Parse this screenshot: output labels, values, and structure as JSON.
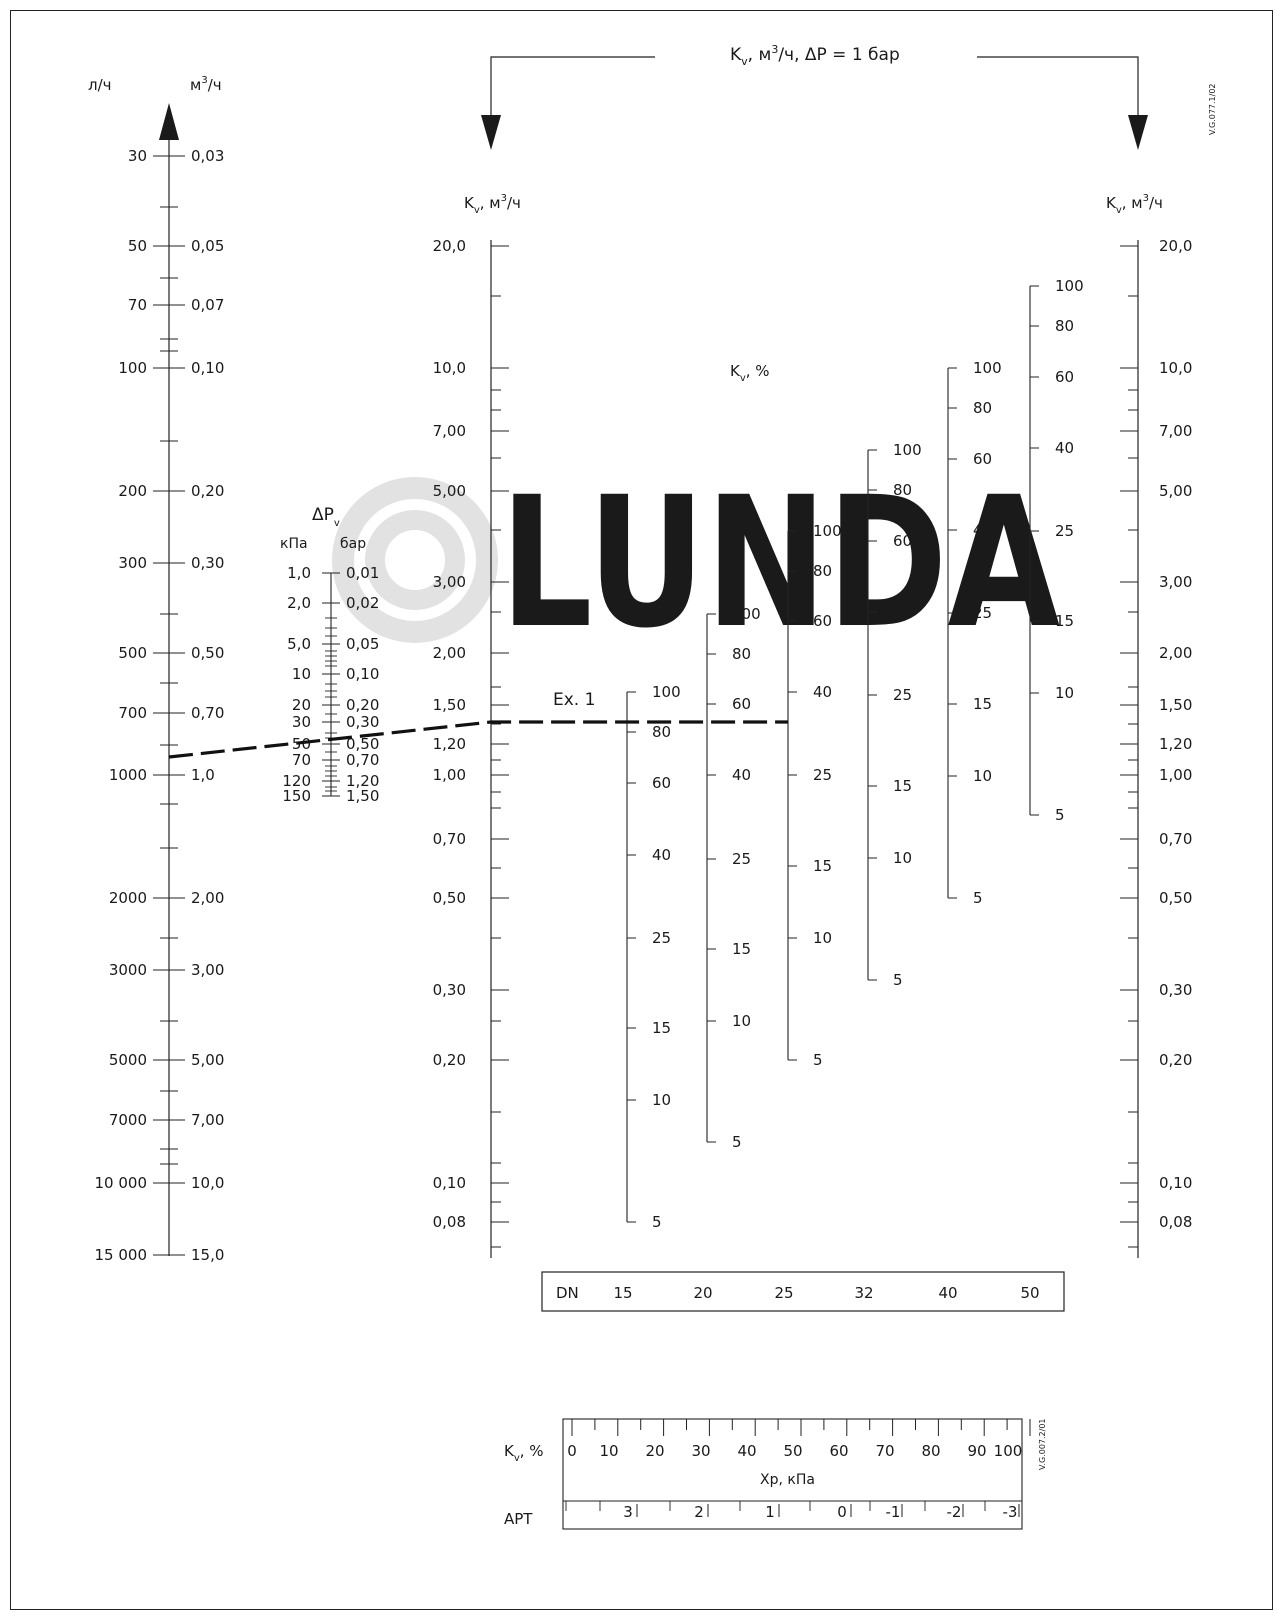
{
  "top_label": {
    "base": "K",
    "sub": "v",
    "rest_pre": ", м",
    "sup": "3",
    "rest_post": "/ч, ΔP = 1 бар"
  },
  "side_code_top": "V.G.077.1/02",
  "side_code_bottom": "V.G.007.2/01",
  "watermark": "LUNDA",
  "flow_axis": {
    "unit_lh": "л/ч",
    "unit_m3h_base": "м",
    "unit_m3h_sup": "3",
    "unit_m3h_post": "/ч",
    "rows": [
      {
        "lh": "30",
        "m3h": "0,03"
      },
      {
        "lh": "50",
        "m3h": "0,05"
      },
      {
        "lh": "70",
        "m3h": "0,07"
      },
      {
        "lh": "100",
        "m3h": "0,10"
      },
      {
        "lh": "200",
        "m3h": "0,20"
      },
      {
        "lh": "300",
        "m3h": "0,30"
      },
      {
        "lh": "500",
        "m3h": "0,50"
      },
      {
        "lh": "700",
        "m3h": "0,70"
      },
      {
        "lh": "1000",
        "m3h": "1,0"
      },
      {
        "lh": "2000",
        "m3h": "2,00"
      },
      {
        "lh": "3000",
        "m3h": "3,00"
      },
      {
        "lh": "5000",
        "m3h": "5,00"
      },
      {
        "lh": "7000",
        "m3h": "7,00"
      },
      {
        "lh": "10 000",
        "m3h": "10,0"
      },
      {
        "lh": "15 000",
        "m3h": "15,0"
      }
    ]
  },
  "dp_axis": {
    "title_base": "ΔP",
    "title_sub": "v",
    "unit_kpa": "кПа",
    "unit_bar": "бар",
    "rows": [
      {
        "kpa": "1,0",
        "bar": "0,01"
      },
      {
        "kpa": "2,0",
        "bar": "0,02"
      },
      {
        "kpa": "5,0",
        "bar": "0,05"
      },
      {
        "kpa": "10",
        "bar": "0,10"
      },
      {
        "kpa": "20",
        "bar": "0,20"
      },
      {
        "kpa": "30",
        "bar": "0,30"
      },
      {
        "kpa": "50",
        "bar": "0,50"
      },
      {
        "kpa": "70",
        "bar": "0,70"
      },
      {
        "kpa": "120",
        "bar": "1,20"
      },
      {
        "kpa": "150",
        "bar": "1,50"
      }
    ]
  },
  "kv_axis": {
    "title_base": "K",
    "title_sub": "v",
    "title_rest": ", м",
    "title_sup": "3",
    "title_post": "/ч",
    "labels": [
      "20,0",
      "10,0",
      "7,00",
      "5,00",
      "3,00",
      "2,00",
      "1,50",
      "1,20",
      "1,00",
      "0,70",
      "0,50",
      "0,30",
      "0,20",
      "0,10",
      "0,08"
    ]
  },
  "kv_percent_title": {
    "base": "K",
    "sub": "v",
    "rest": ", %"
  },
  "example_label": "Ex. 1",
  "dn_scales": [
    {
      "dn": "15",
      "labels": [
        "100",
        "80",
        "60",
        "40",
        "25",
        "15",
        "10",
        "5"
      ]
    },
    {
      "dn": "20",
      "labels": [
        "100",
        "80",
        "60",
        "40",
        "25",
        "15",
        "10",
        "5"
      ]
    },
    {
      "dn": "25",
      "labels": [
        "100",
        "80",
        "60",
        "40",
        "25",
        "15",
        "10",
        "5"
      ]
    },
    {
      "dn": "32",
      "labels": [
        "100",
        "80",
        "60",
        "40",
        "25",
        "15",
        "10",
        "5"
      ]
    },
    {
      "dn": "40",
      "labels": [
        "100",
        "80",
        "60",
        "40",
        "25",
        "15",
        "10",
        "5"
      ]
    },
    {
      "dn": "50",
      "labels": [
        "100",
        "80",
        "60",
        "40",
        "25",
        "15",
        "10",
        "5"
      ]
    }
  ],
  "dn_box": {
    "label": "DN",
    "values": [
      "15",
      "20",
      "25",
      "32",
      "40",
      "50"
    ]
  },
  "bottom_scale": {
    "kv_label": "K",
    "kv_sub": "v",
    "kv_rest": ", %",
    "kv_values": [
      "0",
      "10",
      "20",
      "30",
      "40",
      "50",
      "60",
      "70",
      "80",
      "90",
      "100"
    ],
    "xp_label": "Xp, кПа",
    "apt_label": "APT",
    "apt_values": [
      "3",
      "2",
      "1",
      "0",
      "-1",
      "-2",
      "-3"
    ]
  }
}
